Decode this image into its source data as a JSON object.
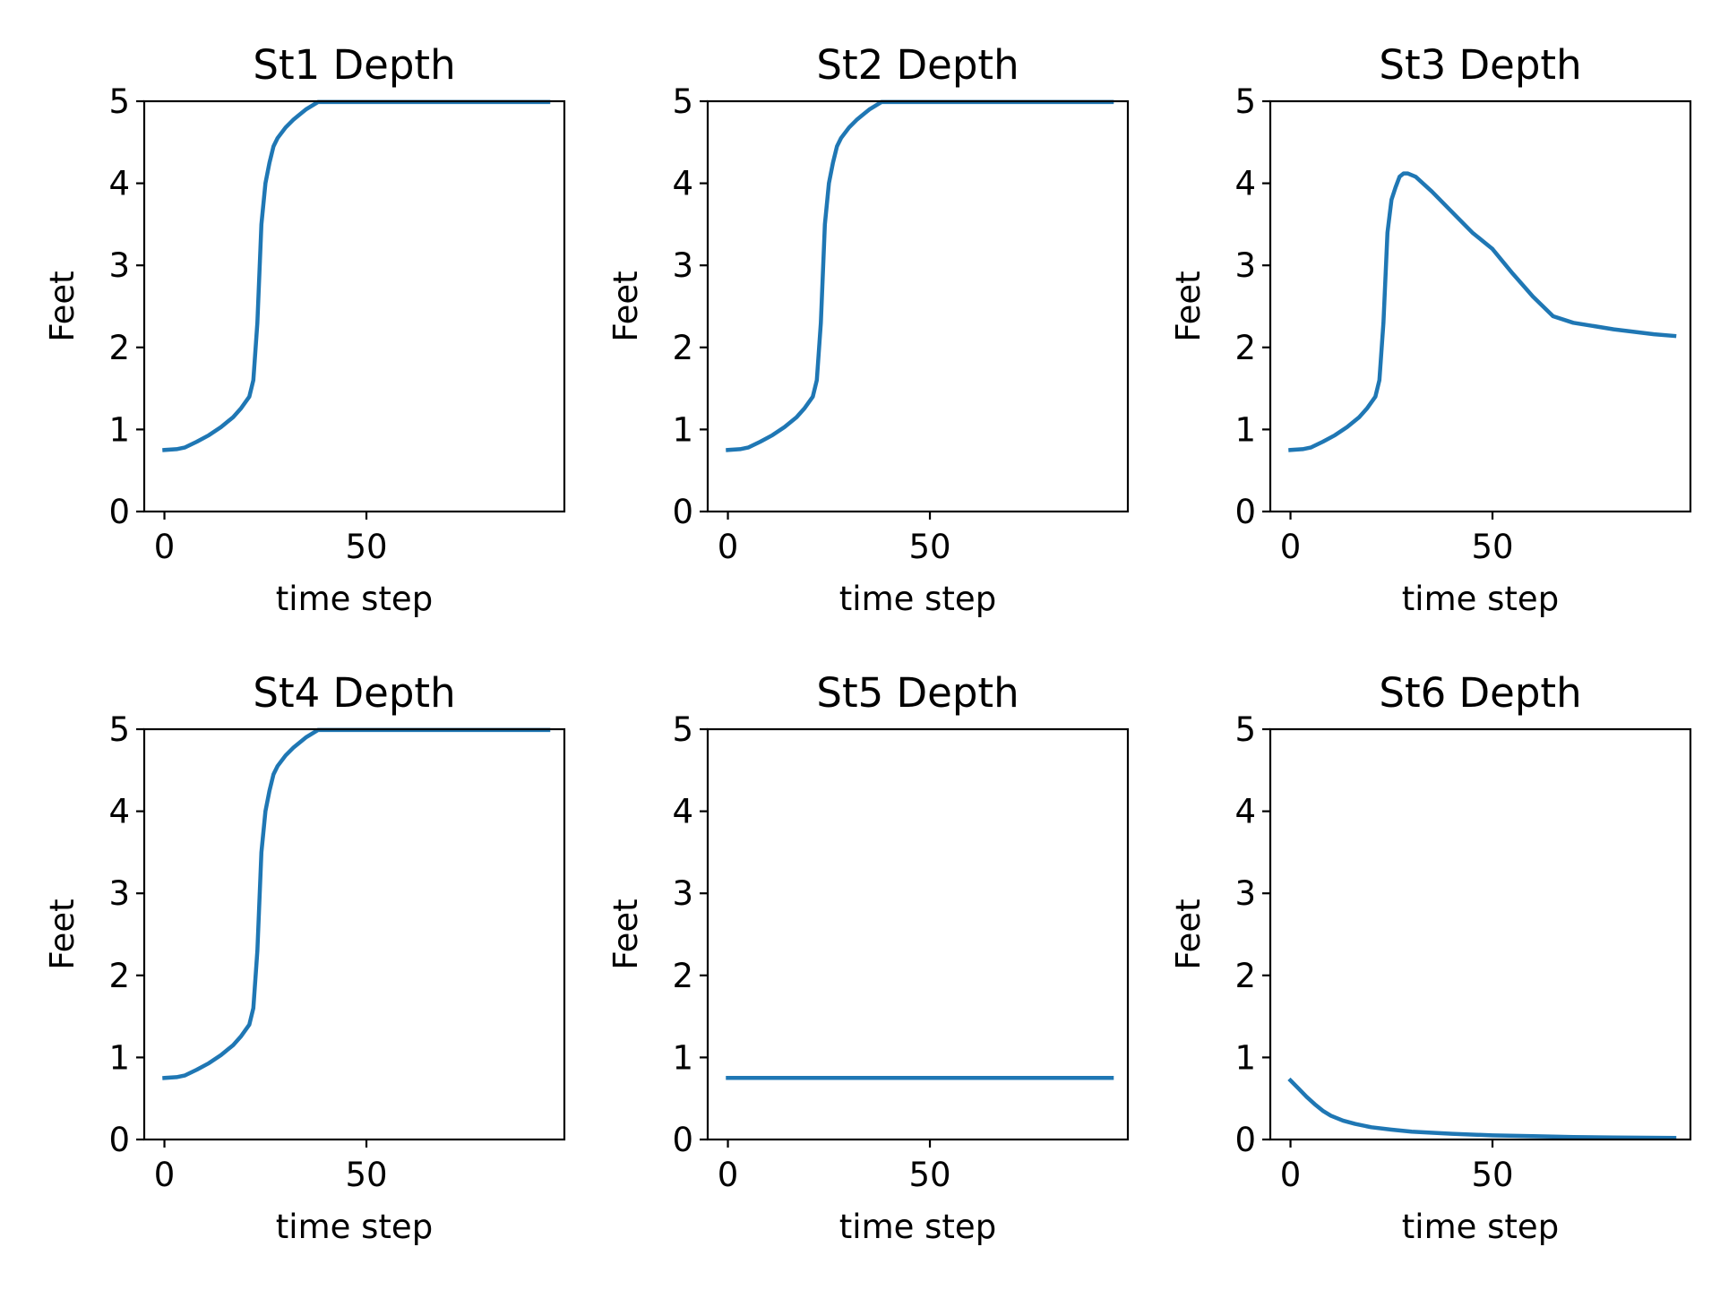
{
  "figure": {
    "rows": 2,
    "cols": 3
  },
  "chart_data": [
    {
      "type": "line",
      "title": "St1 Depth",
      "xlabel": "time step",
      "ylabel": "Feet",
      "xlim": [
        -5,
        99
      ],
      "ylim": [
        0,
        5
      ],
      "xticks": [
        0,
        50
      ],
      "yticks": [
        0,
        1,
        2,
        3,
        4,
        5
      ],
      "color": "#1f77b4",
      "x": [
        0,
        3,
        5,
        8,
        11,
        14,
        17,
        19,
        21,
        22,
        23,
        24,
        25,
        26,
        27,
        28,
        30,
        32,
        35,
        38,
        40,
        60,
        80,
        95
      ],
      "y": [
        0.75,
        0.76,
        0.78,
        0.85,
        0.93,
        1.03,
        1.15,
        1.26,
        1.4,
        1.6,
        2.3,
        3.5,
        4.0,
        4.25,
        4.45,
        4.55,
        4.68,
        4.78,
        4.9,
        4.99,
        4.99,
        4.99,
        4.99,
        4.99
      ]
    },
    {
      "type": "line",
      "title": "St2 Depth",
      "xlabel": "time step",
      "ylabel": "Feet",
      "xlim": [
        -5,
        99
      ],
      "ylim": [
        0,
        5
      ],
      "xticks": [
        0,
        50
      ],
      "yticks": [
        0,
        1,
        2,
        3,
        4,
        5
      ],
      "color": "#1f77b4",
      "x": [
        0,
        3,
        5,
        8,
        11,
        14,
        17,
        19,
        21,
        22,
        23,
        24,
        25,
        26,
        27,
        28,
        30,
        32,
        35,
        38,
        40,
        60,
        80,
        95
      ],
      "y": [
        0.75,
        0.76,
        0.78,
        0.85,
        0.93,
        1.03,
        1.15,
        1.26,
        1.4,
        1.6,
        2.3,
        3.5,
        4.0,
        4.25,
        4.45,
        4.55,
        4.68,
        4.78,
        4.9,
        4.99,
        4.99,
        4.99,
        4.99,
        4.99
      ]
    },
    {
      "type": "line",
      "title": "St3 Depth",
      "xlabel": "time step",
      "ylabel": "Feet",
      "xlim": [
        -5,
        99
      ],
      "ylim": [
        0,
        5
      ],
      "xticks": [
        0,
        50
      ],
      "yticks": [
        0,
        1,
        2,
        3,
        4,
        5
      ],
      "color": "#1f77b4",
      "x": [
        0,
        3,
        5,
        8,
        11,
        14,
        17,
        19,
        21,
        22,
        23,
        24,
        25,
        26,
        27,
        28,
        29,
        31,
        35,
        40,
        45,
        50,
        55,
        60,
        65,
        70,
        80,
        90,
        95
      ],
      "y": [
        0.75,
        0.76,
        0.78,
        0.85,
        0.93,
        1.03,
        1.15,
        1.26,
        1.4,
        1.6,
        2.3,
        3.4,
        3.8,
        3.95,
        4.08,
        4.12,
        4.12,
        4.08,
        3.9,
        3.65,
        3.4,
        3.2,
        2.9,
        2.62,
        2.38,
        2.3,
        2.22,
        2.16,
        2.14
      ]
    },
    {
      "type": "line",
      "title": "St4 Depth",
      "xlabel": "time step",
      "ylabel": "Feet",
      "xlim": [
        -5,
        99
      ],
      "ylim": [
        0,
        5
      ],
      "xticks": [
        0,
        50
      ],
      "yticks": [
        0,
        1,
        2,
        3,
        4,
        5
      ],
      "color": "#1f77b4",
      "x": [
        0,
        3,
        5,
        8,
        11,
        14,
        17,
        19,
        21,
        22,
        23,
        24,
        25,
        26,
        27,
        28,
        30,
        32,
        35,
        38,
        40,
        60,
        80,
        95
      ],
      "y": [
        0.75,
        0.76,
        0.78,
        0.85,
        0.93,
        1.03,
        1.15,
        1.26,
        1.4,
        1.6,
        2.3,
        3.5,
        4.0,
        4.25,
        4.45,
        4.55,
        4.68,
        4.78,
        4.9,
        4.99,
        4.99,
        4.99,
        4.99,
        4.99
      ]
    },
    {
      "type": "line",
      "title": "St5 Depth",
      "xlabel": "time step",
      "ylabel": "Feet",
      "xlim": [
        -5,
        99
      ],
      "ylim": [
        0,
        5
      ],
      "xticks": [
        0,
        50
      ],
      "yticks": [
        0,
        1,
        2,
        3,
        4,
        5
      ],
      "color": "#1f77b4",
      "x": [
        0,
        95
      ],
      "y": [
        0.75,
        0.75
      ]
    },
    {
      "type": "line",
      "title": "St6 Depth",
      "xlabel": "time step",
      "ylabel": "Feet",
      "xlim": [
        -5,
        99
      ],
      "ylim": [
        0,
        5
      ],
      "xticks": [
        0,
        50
      ],
      "yticks": [
        0,
        1,
        2,
        3,
        4,
        5
      ],
      "color": "#1f77b4",
      "x": [
        0,
        2,
        4,
        6,
        8,
        10,
        13,
        16,
        20,
        25,
        30,
        40,
        50,
        60,
        70,
        80,
        95
      ],
      "y": [
        0.72,
        0.62,
        0.52,
        0.43,
        0.35,
        0.29,
        0.23,
        0.19,
        0.15,
        0.12,
        0.095,
        0.07,
        0.05,
        0.04,
        0.03,
        0.025,
        0.02
      ]
    }
  ]
}
